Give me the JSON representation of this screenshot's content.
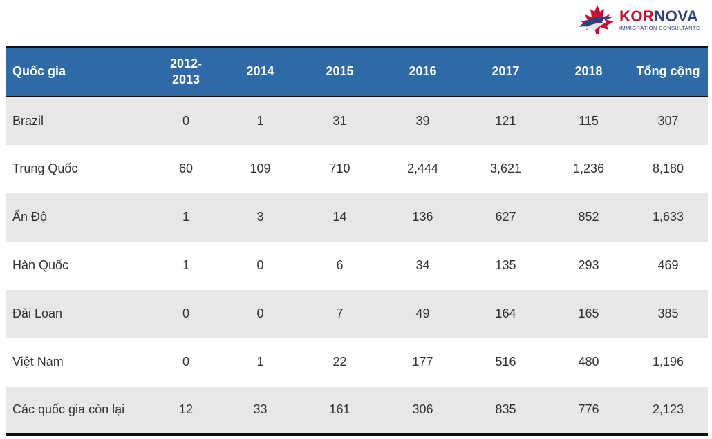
{
  "logo": {
    "brand_part1": "KOR",
    "brand_part2": "NOVA",
    "tagline": "IMMIGRATION CONSULTANTS",
    "colors": {
      "red": "#c8102e",
      "navy": "#2e3f7f"
    }
  },
  "table": {
    "header_color": "#2e6aa8",
    "stripe_color": "#e7e7e7",
    "headers": [
      "Quốc gia",
      "2012-\n2013",
      "2014",
      "2015",
      "2016",
      "2017",
      "2018",
      "Tổng cộng"
    ],
    "rows": [
      [
        "Brazil",
        "0",
        "1",
        "31",
        "39",
        "121",
        "115",
        "307"
      ],
      [
        "Trung Quốc",
        "60",
        "109",
        "710",
        "2,444",
        "3,621",
        "1,236",
        "8,180"
      ],
      [
        "Ấn Độ",
        "1",
        "3",
        "14",
        "136",
        "627",
        "852",
        "1,633"
      ],
      [
        "Hàn Quốc",
        "1",
        "0",
        "6",
        "34",
        "135",
        "293",
        "469"
      ],
      [
        "Đài Loan",
        "0",
        "0",
        "7",
        "49",
        "164",
        "165",
        "385"
      ],
      [
        "Việt Nam",
        "0",
        "1",
        "22",
        "177",
        "516",
        "480",
        "1,196"
      ],
      [
        "Các quốc gia còn lại",
        "12",
        "33",
        "161",
        "306",
        "835",
        "776",
        "2,123"
      ]
    ]
  }
}
